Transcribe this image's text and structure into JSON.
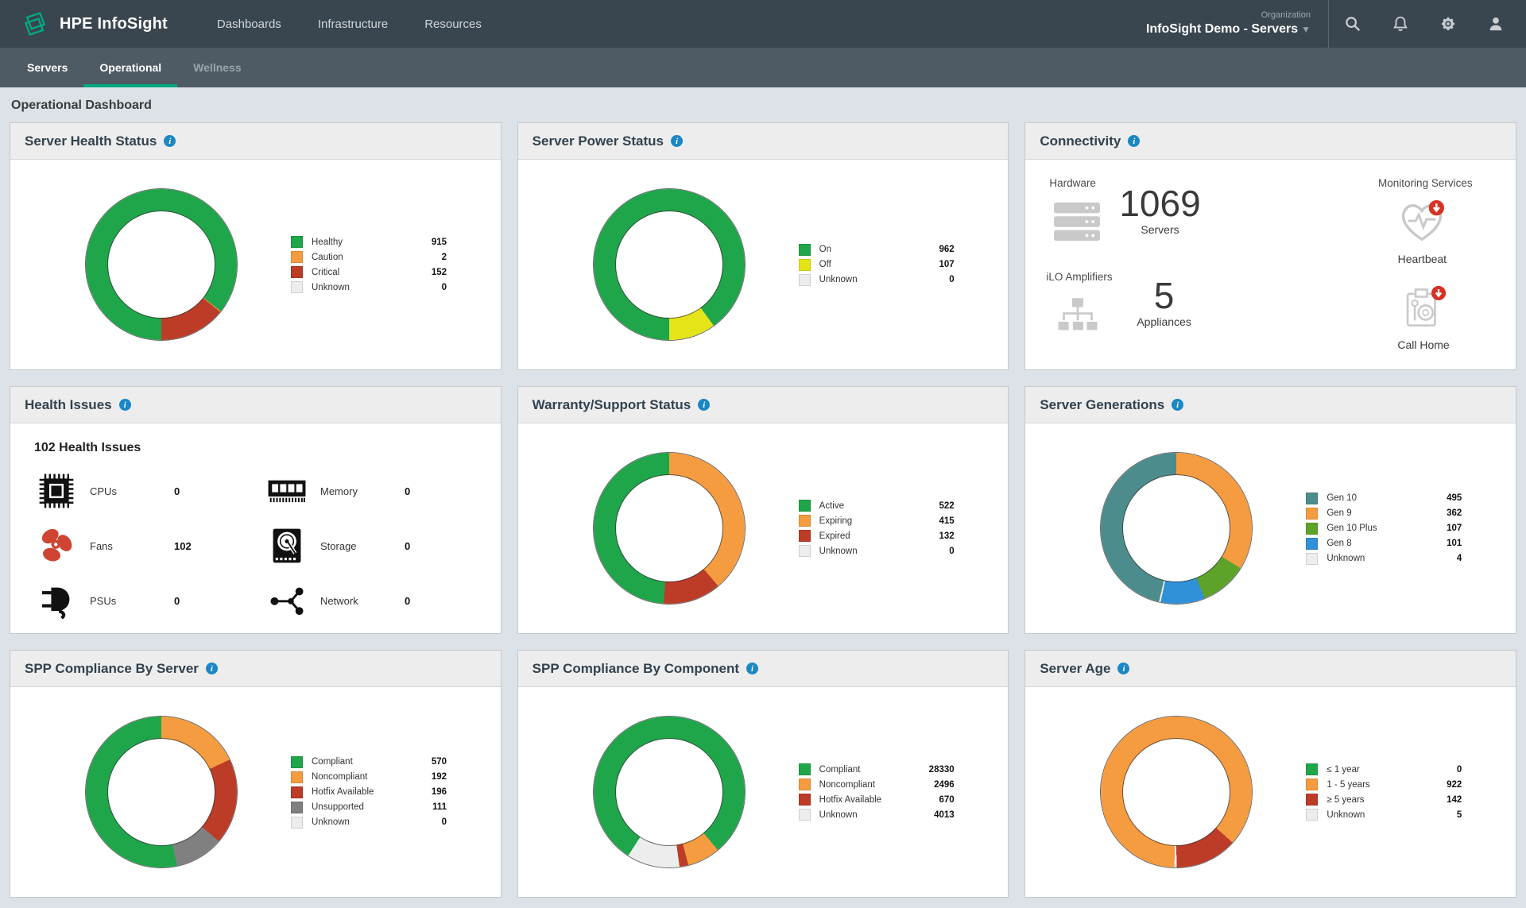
{
  "brand": "HPE InfoSight",
  "nav": {
    "menus": [
      "Dashboards",
      "Infrastructure",
      "Resources"
    ],
    "organization_label": "Organization",
    "organization_value": "InfoSight Demo - Servers",
    "icons": [
      "search-icon",
      "bell-icon",
      "gear-icon",
      "user-icon"
    ]
  },
  "tabs": [
    {
      "label": "Servers",
      "active": false
    },
    {
      "label": "Operational",
      "active": true
    },
    {
      "label": "Wellness",
      "active": false,
      "muted": true
    }
  ],
  "page_title": "Operational Dashboard",
  "colors": {
    "green": "#1fa64a",
    "orange": "#f59b40",
    "red": "#bc3c28",
    "yellow": "#e4e419",
    "teal": "#4d8c8c",
    "lime": "#5da32a",
    "blue": "#3191d8",
    "gray": "#808080",
    "unknown": "#ededed",
    "accent": "#01a982",
    "info_badge": "#1b87c5",
    "alert_red": "#d93025"
  },
  "cards": [
    {
      "id": "server-health-status",
      "title": "Server Health Status",
      "type": "donut",
      "donut_rotation_deg": 180,
      "segments": [
        {
          "label": "Healthy",
          "value": 915,
          "color": "green"
        },
        {
          "label": "Caution",
          "value": 2,
          "color": "orange"
        },
        {
          "label": "Critical",
          "value": 152,
          "color": "red"
        },
        {
          "label": "Unknown",
          "value": 0,
          "color": "unknown"
        }
      ]
    },
    {
      "id": "server-power-status",
      "title": "Server Power Status",
      "type": "donut",
      "donut_rotation_deg": 180,
      "segments": [
        {
          "label": "On",
          "value": 962,
          "color": "green"
        },
        {
          "label": "Off",
          "value": 107,
          "color": "yellow"
        },
        {
          "label": "Unknown",
          "value": 0,
          "color": "unknown"
        }
      ]
    },
    {
      "id": "connectivity",
      "title": "Connectivity",
      "type": "connectivity",
      "hardware": {
        "label": "Hardware",
        "count": "1069",
        "unit": "Servers",
        "icon": "server-stack-icon"
      },
      "ilo": {
        "label": "iLO Amplifiers",
        "count": "5",
        "unit": "Appliances",
        "icon": "network-tree-icon"
      },
      "monitoring_label": "Monitoring Services",
      "services": [
        {
          "label": "Heartbeat",
          "icon": "heartbeat-icon"
        },
        {
          "label": "Call Home",
          "icon": "call-home-icon"
        }
      ]
    },
    {
      "id": "health-issues",
      "title": "Health Issues",
      "type": "issues",
      "heading": "102 Health Issues",
      "items": [
        {
          "label": "CPUs",
          "value": 0,
          "icon": "cpu-icon"
        },
        {
          "label": "Memory",
          "value": 0,
          "icon": "memory-icon"
        },
        {
          "label": "Fans",
          "value": 102,
          "icon": "fan-icon",
          "alert": true
        },
        {
          "label": "Storage",
          "value": 0,
          "icon": "storage-icon"
        },
        {
          "label": "PSUs",
          "value": 0,
          "icon": "psu-icon"
        },
        {
          "label": "Network",
          "value": 0,
          "icon": "network-icon"
        }
      ]
    },
    {
      "id": "warranty-support-status",
      "title": "Warranty/Support Status",
      "type": "donut",
      "donut_rotation_deg": 184.2,
      "segments": [
        {
          "label": "Active",
          "value": 522,
          "color": "green"
        },
        {
          "label": "Expiring",
          "value": 415,
          "color": "orange"
        },
        {
          "label": "Expired",
          "value": 132,
          "color": "red"
        },
        {
          "label": "Unknown",
          "value": 0,
          "color": "unknown"
        }
      ]
    },
    {
      "id": "server-generations",
      "title": "Server Generations",
      "type": "donut",
      "donut_rotation_deg": 193.3,
      "segments": [
        {
          "label": "Gen 10",
          "value": 495,
          "color": "teal"
        },
        {
          "label": "Gen 9",
          "value": 362,
          "color": "orange"
        },
        {
          "label": "Gen 10 Plus",
          "value": 107,
          "color": "lime"
        },
        {
          "label": "Gen 8",
          "value": 101,
          "color": "blue"
        },
        {
          "label": "Unknown",
          "value": 4,
          "color": "unknown"
        }
      ]
    },
    {
      "id": "spp-compliance-by-server",
      "title": "SPP Compliance By Server",
      "type": "donut",
      "donut_rotation_deg": 168,
      "segments": [
        {
          "label": "Compliant",
          "value": 570,
          "color": "green"
        },
        {
          "label": "Noncompliant",
          "value": 192,
          "color": "orange"
        },
        {
          "label": "Hotfix Available",
          "value": 196,
          "color": "red"
        },
        {
          "label": "Unsupported",
          "value": 111,
          "color": "gray"
        },
        {
          "label": "Unknown",
          "value": 0,
          "color": "unknown"
        }
      ]
    },
    {
      "id": "spp-compliance-by-component",
      "title": "SPP Compliance By Component",
      "type": "donut",
      "donut_rotation_deg": 212.8,
      "segments": [
        {
          "label": "Compliant",
          "value": 28330,
          "color": "green"
        },
        {
          "label": "Noncompliant",
          "value": 2496,
          "color": "orange"
        },
        {
          "label": "Hotfix Available",
          "value": 670,
          "color": "red"
        },
        {
          "label": "Unknown",
          "value": 4013,
          "color": "unknown"
        }
      ]
    },
    {
      "id": "server-age",
      "title": "Server Age",
      "type": "donut",
      "donut_rotation_deg": 181.5,
      "segments": [
        {
          "label": "≤ 1 year",
          "value": 0,
          "color": "green"
        },
        {
          "label": "1 - 5 years",
          "value": 922,
          "color": "orange"
        },
        {
          "label": "≥ 5 years",
          "value": 142,
          "color": "red"
        },
        {
          "label": "Unknown",
          "value": 5,
          "color": "unknown"
        }
      ]
    }
  ]
}
